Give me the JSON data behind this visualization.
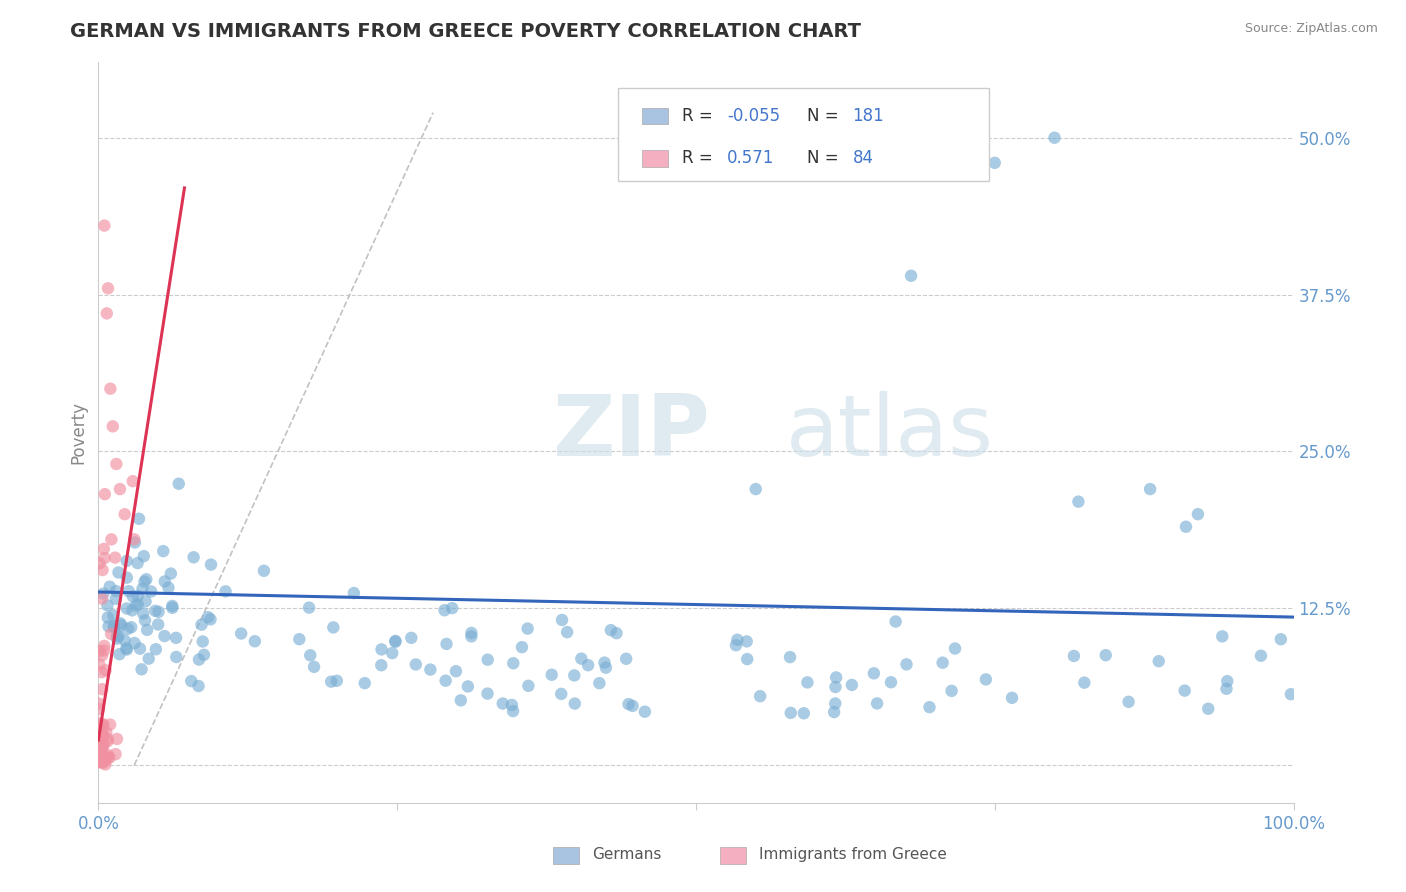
{
  "title": "GERMAN VS IMMIGRANTS FROM GREECE POVERTY CORRELATION CHART",
  "source": "Source: ZipAtlas.com",
  "ylabel": "Poverty",
  "watermark_zip": "ZIP",
  "watermark_atlas": "atlas",
  "xlim": [
    0,
    1
  ],
  "ylim": [
    -0.03,
    0.56
  ],
  "yticks": [
    0.0,
    0.125,
    0.25,
    0.375,
    0.5
  ],
  "ytick_labels_right": [
    "",
    "12.5%",
    "25.0%",
    "37.5%",
    "50.0%"
  ],
  "blue_scatter_color": "#7bafd4",
  "pink_scatter_color": "#f090a0",
  "blue_line_color": "#3366bb",
  "pink_line_color": "#dd3355",
  "ref_line_color": "#bbbbbb",
  "grid_color": "#cccccc",
  "background_color": "#ffffff",
  "title_color": "#333333",
  "title_fontsize": 14,
  "axis_label_color": "#888888",
  "tick_label_color": "#6699cc",
  "source_color": "#888888",
  "R_blue": -0.055,
  "N_blue": 181,
  "R_pink": 0.571,
  "N_pink": 84,
  "seed": 42,
  "blue_line_start_x": 0.0,
  "blue_line_start_y": 0.138,
  "blue_line_end_x": 1.0,
  "blue_line_end_y": 0.118,
  "pink_line_start_x": 0.0,
  "pink_line_start_y": 0.02,
  "pink_line_end_x": 0.072,
  "pink_line_end_y": 0.46,
  "ref_line_start_x": 0.03,
  "ref_line_start_y": 0.0,
  "ref_line_end_x": 0.28,
  "ref_line_end_y": 0.52
}
